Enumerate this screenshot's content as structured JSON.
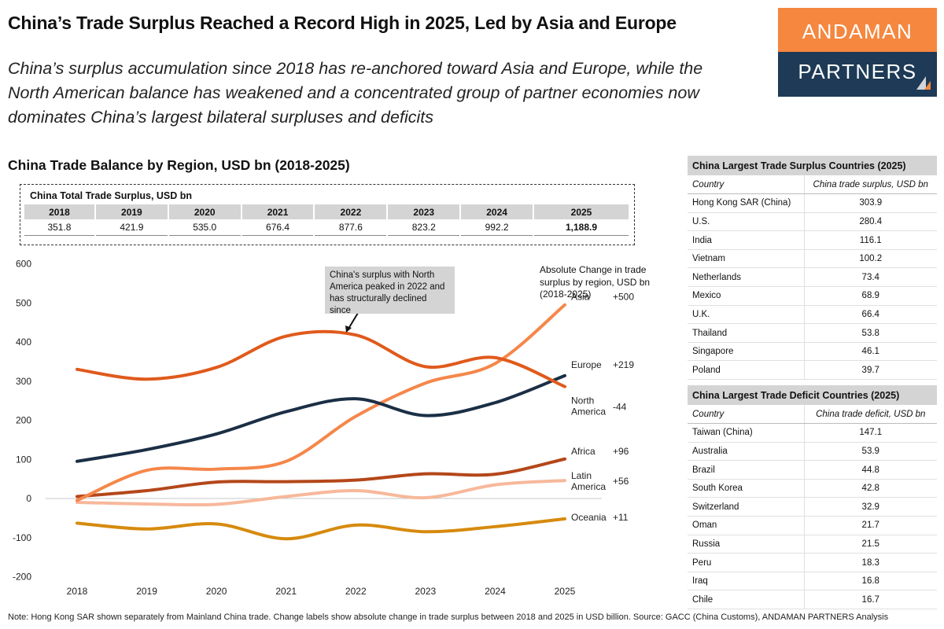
{
  "header": {
    "title": "China’s Trade Surplus Reached a Record High in 2025, Led by Asia and Europe",
    "subtitle": "China’s surplus accumulation since 2018 has re-anchored toward Asia and Europe, while the North American balance has weakened and a concentrated group of partner economies now dominates China’s largest bilateral surpluses and deficits"
  },
  "logo": {
    "line1": "ANDAMAN",
    "line2": "PARTNERS",
    "top_color": "#f5873f",
    "bottom_color": "#1e3a56"
  },
  "section_title": "China Trade Balance by Region, USD bn (2018-2025)",
  "totals": {
    "title": "China Total Trade Surplus, USD bn",
    "years": [
      "2018",
      "2019",
      "2020",
      "2021",
      "2022",
      "2023",
      "2024",
      "2025"
    ],
    "values": [
      "351.8",
      "421.9",
      "535.0",
      "676.4",
      "877.6",
      "823.2",
      "992.2",
      "1,188.9"
    ]
  },
  "callout": {
    "text": "China's surplus with North America peaked in 2022 and has structurally declined since"
  },
  "abs_change_title": "Absolute Change in trade surplus by region, USD bn (2018-2025)",
  "chart_data": {
    "type": "line",
    "title": "China Trade Balance by Region, USD bn (2018-2025)",
    "x": [
      2018,
      2019,
      2020,
      2021,
      2022,
      2023,
      2024,
      2025
    ],
    "ylim": [
      -200,
      600
    ],
    "yticks": [
      -200,
      -100,
      0,
      100,
      200,
      300,
      400,
      500,
      600
    ],
    "xlabel": "",
    "ylabel": "",
    "series": [
      {
        "name": "Asia",
        "change": "+500",
        "color": "#f5874a",
        "values": [
          -5,
          72,
          75,
          95,
          210,
          295,
          345,
          495
        ]
      },
      {
        "name": "Europe",
        "change": "+219",
        "color": "#1b2f45",
        "values": [
          95,
          125,
          165,
          222,
          255,
          212,
          245,
          314
        ]
      },
      {
        "name": "North America",
        "label_lines": [
          "North",
          "America"
        ],
        "change": "-44",
        "color": "#e05a1c",
        "values": [
          330,
          305,
          335,
          415,
          418,
          337,
          360,
          286
        ]
      },
      {
        "name": "Africa",
        "change": "+96",
        "color": "#b4471a",
        "values": [
          5,
          20,
          42,
          43,
          47,
          63,
          62,
          101
        ]
      },
      {
        "name": "Latin America",
        "label_lines": [
          "Latin",
          "America"
        ],
        "change": "+56",
        "color": "#f7b89b",
        "values": [
          -10,
          -14,
          -15,
          5,
          20,
          2,
          35,
          46
        ]
      },
      {
        "name": "Oceania",
        "change": "+11",
        "color": "#d68a0d",
        "values": [
          -63,
          -78,
          -65,
          -103,
          -68,
          -85,
          -72,
          -52
        ]
      }
    ]
  },
  "surplus_table": {
    "title": "China Largest Trade Surplus Countries (2025)",
    "col1": "Country",
    "col2": "China trade surplus, USD bn",
    "rows": [
      [
        "Hong Kong SAR (China)",
        "303.9"
      ],
      [
        "U.S.",
        "280.4"
      ],
      [
        "India",
        "116.1"
      ],
      [
        "Vietnam",
        "100.2"
      ],
      [
        "Netherlands",
        "73.4"
      ],
      [
        "Mexico",
        "68.9"
      ],
      [
        "U.K.",
        "66.4"
      ],
      [
        "Thailand",
        "53.8"
      ],
      [
        "Singapore",
        "46.1"
      ],
      [
        "Poland",
        "39.7"
      ]
    ]
  },
  "deficit_table": {
    "title": "China Largest Trade Deficit Countries (2025)",
    "col1": "Country",
    "col2": "China trade deficit, USD bn",
    "rows": [
      [
        "Taiwan (China)",
        "147.1"
      ],
      [
        "Australia",
        "53.9"
      ],
      [
        "Brazil",
        "44.8"
      ],
      [
        "South Korea",
        "42.8"
      ],
      [
        "Switzerland",
        "32.9"
      ],
      [
        "Oman",
        "21.7"
      ],
      [
        "Russia",
        "21.5"
      ],
      [
        "Peru",
        "18.3"
      ],
      [
        "Iraq",
        "16.8"
      ],
      [
        "Chile",
        "16.7"
      ]
    ]
  },
  "note": "Note: Hong Kong SAR shown separately from Mainland China trade. Change labels show absolute change in trade surplus between 2018 and 2025 in USD billion. Source: GACC (China Customs), ANDAMAN PARTNERS Analysis"
}
